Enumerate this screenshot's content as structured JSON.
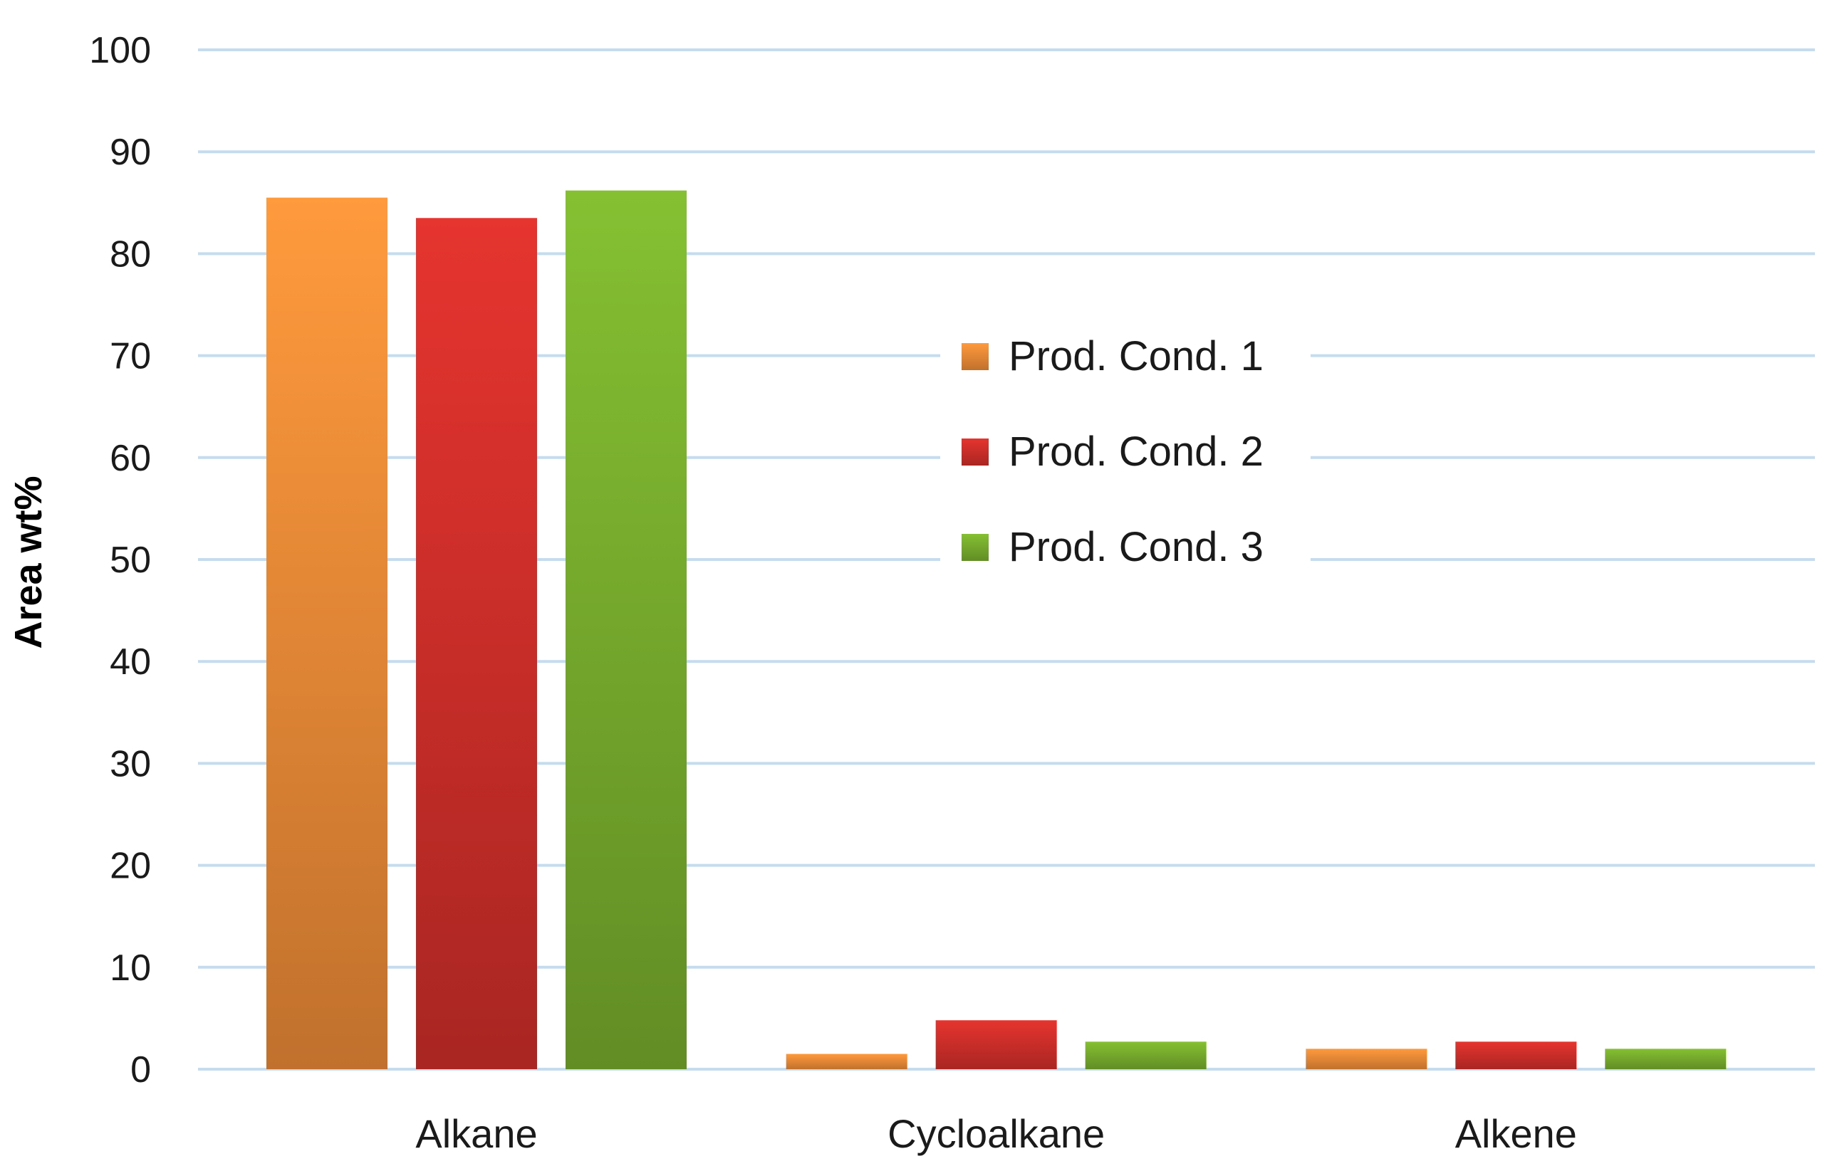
{
  "chart_data": {
    "type": "bar",
    "title": "",
    "xlabel": "",
    "ylabel": "Area wt%",
    "ylim": [
      0,
      100
    ],
    "yticks": [
      0,
      10,
      20,
      30,
      40,
      50,
      60,
      70,
      80,
      90,
      100
    ],
    "grid": true,
    "legend_position": "center-right",
    "categories": [
      "Alkane",
      "Cycloalkane",
      "Alkene"
    ],
    "series": [
      {
        "name": "Prod. Cond. 1",
        "color": "#f7913a",
        "values": [
          85.5,
          1.5,
          2.0
        ]
      },
      {
        "name": "Prod. Cond. 2",
        "color": "#d9312c",
        "values": [
          83.5,
          4.8,
          2.7
        ]
      },
      {
        "name": "Prod. Cond. 3",
        "color": "#7db52f",
        "values": [
          86.2,
          2.7,
          2.0
        ]
      }
    ]
  }
}
